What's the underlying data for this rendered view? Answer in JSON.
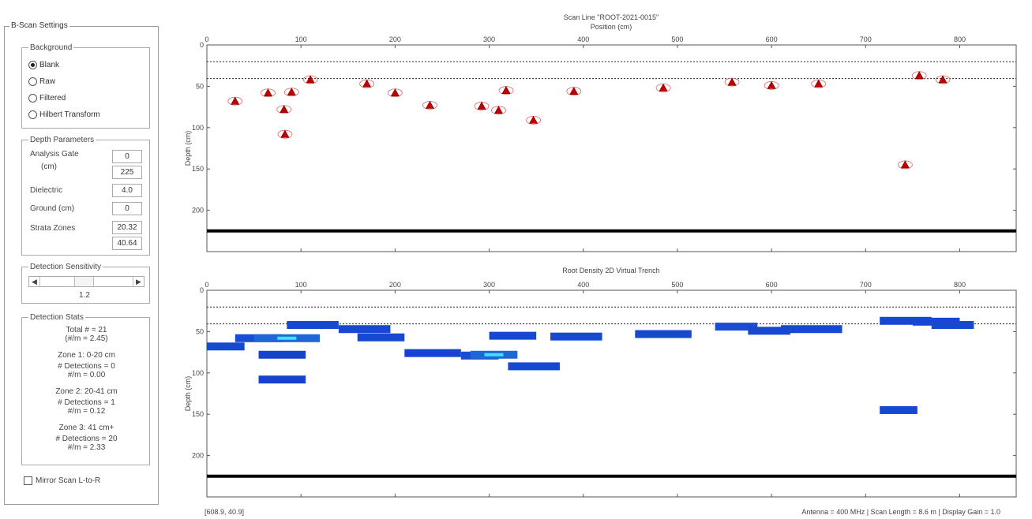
{
  "settings": {
    "title": "B-Scan Settings",
    "background": {
      "label": "Background",
      "options": [
        "Blank",
        "Raw",
        "Filtered",
        "Hilbert Transform"
      ],
      "selected": "Blank"
    },
    "depth": {
      "label": "Depth Parameters",
      "analysis_gate_label": "Analysis Gate",
      "analysis_gate_unit": "(cm)",
      "analysis_gate_min": "0",
      "analysis_gate_max": "225",
      "dielectric_label": "Dielectric",
      "dielectric_value": "4.0",
      "ground_label": "Ground (cm)",
      "ground_value": "0",
      "strata_label": "Strata Zones",
      "strata_1": "20.32",
      "strata_2": "40.64"
    },
    "sensitivity": {
      "label": "Detection Sensitivity",
      "value": "1.2",
      "level": 0.46
    },
    "stats": {
      "label": "Detection Stats",
      "lines": [
        "Total # = 21",
        "(#/m = 2.45)",
        "Zone 1: 0-20 cm",
        "# Detections = 0",
        "#/m = 0.00",
        "Zone 2: 20-41 cm",
        "# Detections = 1",
        "#/m = 0.12",
        "Zone 3: 41 cm+",
        "# Detections = 20",
        "#/m = 2.33"
      ]
    },
    "mirror_label": "Mirror Scan L-to-R",
    "mirror_checked": false
  },
  "plot_top": {
    "title": "Scan Line \"ROOT-2021-0015\"",
    "xlabel": "Position (cm)",
    "ylabel": "Depth (cm)"
  },
  "plot_bottom": {
    "title": "Root Density 2D Virtual Trench",
    "ylabel": "Depth (cm)"
  },
  "chart_data": [
    {
      "type": "scatter",
      "title": "Scan Line \"ROOT-2021-0015\"",
      "xlabel": "Position (cm)",
      "ylabel": "Depth (cm)",
      "xlim": [
        0,
        860
      ],
      "ylim": [
        0,
        250
      ],
      "xticks": [
        0,
        100,
        200,
        300,
        400,
        500,
        600,
        700,
        800
      ],
      "yticks": [
        0,
        50,
        100,
        150,
        200
      ],
      "strata_lines": [
        20.32,
        40.64
      ],
      "gate_line": 225,
      "marker_color": "#c00000",
      "points": [
        {
          "x": 30,
          "y": 68
        },
        {
          "x": 65,
          "y": 58
        },
        {
          "x": 82,
          "y": 78
        },
        {
          "x": 83,
          "y": 108
        },
        {
          "x": 90,
          "y": 57
        },
        {
          "x": 110,
          "y": 42
        },
        {
          "x": 170,
          "y": 47
        },
        {
          "x": 200,
          "y": 58
        },
        {
          "x": 237,
          "y": 73
        },
        {
          "x": 292,
          "y": 74
        },
        {
          "x": 310,
          "y": 79
        },
        {
          "x": 318,
          "y": 55
        },
        {
          "x": 347,
          "y": 91
        },
        {
          "x": 390,
          "y": 56
        },
        {
          "x": 485,
          "y": 52
        },
        {
          "x": 558,
          "y": 45
        },
        {
          "x": 600,
          "y": 49
        },
        {
          "x": 650,
          "y": 47
        },
        {
          "x": 742,
          "y": 145
        },
        {
          "x": 757,
          "y": 37
        },
        {
          "x": 782,
          "y": 42
        }
      ]
    },
    {
      "type": "heatmap",
      "title": "Root Density 2D Virtual Trench",
      "ylabel": "Depth (cm)",
      "xlim": [
        0,
        860
      ],
      "ylim": [
        0,
        250
      ],
      "xticks": [
        0,
        100,
        200,
        300,
        400,
        500,
        600,
        700,
        800
      ],
      "yticks": [
        0,
        50,
        100,
        150,
        200
      ],
      "strata_lines": [
        20.32,
        40.64
      ],
      "gate_line": 225,
      "color_low": "#1030c8",
      "color_high": "#40e0ff",
      "segments": [
        {
          "x0": 0,
          "x1": 40,
          "y": 68,
          "v": 0.4
        },
        {
          "x0": 30,
          "x1": 80,
          "y": 58,
          "v": 0.5
        },
        {
          "x0": 50,
          "x1": 120,
          "y": 58,
          "v": 0.9
        },
        {
          "x0": 55,
          "x1": 105,
          "y": 78,
          "v": 0.3
        },
        {
          "x0": 55,
          "x1": 105,
          "y": 108,
          "v": 0.3
        },
        {
          "x0": 85,
          "x1": 140,
          "y": 42,
          "v": 0.4
        },
        {
          "x0": 140,
          "x1": 195,
          "y": 47,
          "v": 0.4
        },
        {
          "x0": 160,
          "x1": 210,
          "y": 57,
          "v": 0.4
        },
        {
          "x0": 210,
          "x1": 270,
          "y": 76,
          "v": 0.3
        },
        {
          "x0": 270,
          "x1": 310,
          "y": 79,
          "v": 0.5
        },
        {
          "x0": 280,
          "x1": 330,
          "y": 78,
          "v": 0.9
        },
        {
          "x0": 300,
          "x1": 350,
          "y": 55,
          "v": 0.4
        },
        {
          "x0": 320,
          "x1": 375,
          "y": 92,
          "v": 0.4
        },
        {
          "x0": 365,
          "x1": 420,
          "y": 56,
          "v": 0.4
        },
        {
          "x0": 455,
          "x1": 515,
          "y": 53,
          "v": 0.4
        },
        {
          "x0": 540,
          "x1": 585,
          "y": 44,
          "v": 0.5
        },
        {
          "x0": 575,
          "x1": 620,
          "y": 49,
          "v": 0.4
        },
        {
          "x0": 610,
          "x1": 675,
          "y": 47,
          "v": 0.4
        },
        {
          "x0": 715,
          "x1": 770,
          "y": 37,
          "v": 0.4
        },
        {
          "x0": 750,
          "x1": 800,
          "y": 38,
          "v": 0.4
        },
        {
          "x0": 770,
          "x1": 815,
          "y": 42,
          "v": 0.4
        },
        {
          "x0": 715,
          "x1": 755,
          "y": 145,
          "v": 0.4
        }
      ]
    }
  ],
  "status": {
    "coords": "[608.9, 40.9]",
    "info": "Antenna = 400 MHz | Scan Length = 8.6 m | Display Gain = 1.0"
  }
}
